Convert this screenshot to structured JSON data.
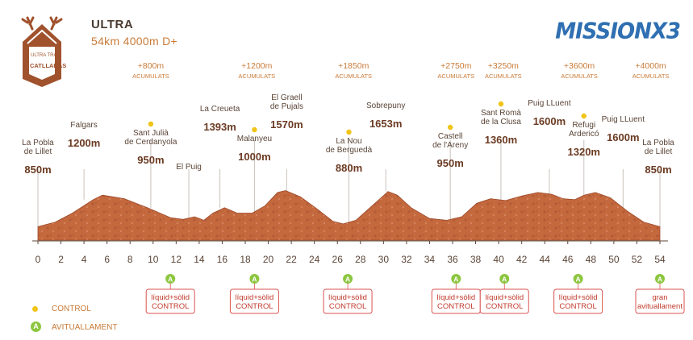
{
  "header": {
    "title": "ULTRA",
    "subtitle": "54km 4000m D+",
    "logo_text_1": "ULTRA TRAIL",
    "logo_text_2": "CATLLARÀS",
    "brand": "MISSIONX3"
  },
  "colors": {
    "terrain": "#c4683e",
    "terrain_dark": "#9c4a2b",
    "text_main": "#5a4436",
    "text_accent": "#c97a37",
    "control": "#f0c419",
    "station": "#8cc63f",
    "station_box": "#d9534f",
    "logo": "#a0522d",
    "brand": "#2f6fb2"
  },
  "chart_data": {
    "type": "area",
    "xlabel": "",
    "ylabel": "",
    "xlim": [
      0,
      54
    ],
    "ylim": [
      700,
      1700
    ],
    "x_ticks": [
      0,
      2,
      4,
      6,
      8,
      10,
      12,
      14,
      16,
      18,
      20,
      22,
      24,
      26,
      28,
      30,
      32,
      34,
      36,
      38,
      40,
      42,
      44,
      46,
      48,
      50,
      52,
      54
    ],
    "profile": [
      {
        "x": 0,
        "y": 850
      },
      {
        "x": 1.5,
        "y": 900
      },
      {
        "x": 3,
        "y": 1000
      },
      {
        "x": 4.8,
        "y": 1150
      },
      {
        "x": 5.6,
        "y": 1200
      },
      {
        "x": 7.5,
        "y": 1160
      },
      {
        "x": 9.5,
        "y": 1060
      },
      {
        "x": 11.5,
        "y": 950
      },
      {
        "x": 12.6,
        "y": 930
      },
      {
        "x": 13.6,
        "y": 960
      },
      {
        "x": 14.4,
        "y": 920
      },
      {
        "x": 15.2,
        "y": 1000
      },
      {
        "x": 16.2,
        "y": 1060
      },
      {
        "x": 17.3,
        "y": 1000
      },
      {
        "x": 18.6,
        "y": 1000
      },
      {
        "x": 19.7,
        "y": 1080
      },
      {
        "x": 20.8,
        "y": 1230
      },
      {
        "x": 21.5,
        "y": 1250
      },
      {
        "x": 22.8,
        "y": 1180
      },
      {
        "x": 24.2,
        "y": 1050
      },
      {
        "x": 25.6,
        "y": 910
      },
      {
        "x": 26.5,
        "y": 880
      },
      {
        "x": 27.6,
        "y": 920
      },
      {
        "x": 29,
        "y": 1080
      },
      {
        "x": 30.4,
        "y": 1240
      },
      {
        "x": 31.2,
        "y": 1200
      },
      {
        "x": 32.4,
        "y": 1060
      },
      {
        "x": 34,
        "y": 940
      },
      {
        "x": 35.5,
        "y": 920
      },
      {
        "x": 36.8,
        "y": 960
      },
      {
        "x": 38.1,
        "y": 1110
      },
      {
        "x": 39.3,
        "y": 1160
      },
      {
        "x": 40.6,
        "y": 1140
      },
      {
        "x": 42,
        "y": 1190
      },
      {
        "x": 43.4,
        "y": 1230
      },
      {
        "x": 44.6,
        "y": 1210
      },
      {
        "x": 45.6,
        "y": 1160
      },
      {
        "x": 46.6,
        "y": 1150
      },
      {
        "x": 47.4,
        "y": 1200
      },
      {
        "x": 48.4,
        "y": 1230
      },
      {
        "x": 49.7,
        "y": 1170
      },
      {
        "x": 51.2,
        "y": 1020
      },
      {
        "x": 52.6,
        "y": 900
      },
      {
        "x": 54,
        "y": 850
      }
    ],
    "accum": [
      {
        "x": 9.8,
        "value": "+800m",
        "label": "ACUMULATS"
      },
      {
        "x": 19.0,
        "value": "+1200m",
        "label": "ACUMULATS"
      },
      {
        "x": 27.4,
        "value": "+1850m",
        "label": "ACUMULATS"
      },
      {
        "x": 36.3,
        "value": "+2750m",
        "label": "ACUMULATS"
      },
      {
        "x": 40.4,
        "value": "+3250m",
        "label": "ACUMULATS"
      },
      {
        "x": 47.0,
        "value": "+3600m",
        "label": "ACUMULATS"
      },
      {
        "x": 53.2,
        "value": "+4000m",
        "label": "ACUMULATS"
      }
    ],
    "points": [
      {
        "x": 0,
        "name_lines": [
          "La Pobla",
          "de Lillet"
        ],
        "alt": "850m",
        "control": false
      },
      {
        "x": 4.0,
        "name_lines": [
          "Falgars"
        ],
        "alt": "1200m",
        "control": false
      },
      {
        "x": 9.8,
        "name_lines": [
          "Sant Julià",
          "de Cerdanyola"
        ],
        "alt": "950m",
        "control": true
      },
      {
        "x": 13.1,
        "name_lines": [
          "El Puig"
        ],
        "alt": "",
        "control": false
      },
      {
        "x": 15.8,
        "name_lines": [
          "La Creueta"
        ],
        "alt": "1393m",
        "control": false
      },
      {
        "x": 18.8,
        "name_lines": [
          "Malanyeu"
        ],
        "alt": "1000m",
        "control": true
      },
      {
        "x": 21.6,
        "name_lines": [
          "El Graell",
          "de Pujals"
        ],
        "alt": "1570m",
        "control": false
      },
      {
        "x": 27.0,
        "name_lines": [
          "La Nou",
          "de Berguedà"
        ],
        "alt": "880m",
        "control": true
      },
      {
        "x": 30.2,
        "name_lines": [
          "Sobrepuny"
        ],
        "alt": "1653m",
        "control": false
      },
      {
        "x": 35.8,
        "name_lines": [
          "Castell",
          "de l'Areny"
        ],
        "alt": "950m",
        "control": true
      },
      {
        "x": 40.2,
        "name_lines": [
          "Sant Romà",
          "de la Clusa"
        ],
        "alt": "1360m",
        "control": true
      },
      {
        "x": 44.4,
        "name_lines": [
          "Puig LLuent"
        ],
        "alt": "1600m",
        "control": false
      },
      {
        "x": 47.4,
        "name_lines": [
          "Refugi",
          "Ardericó"
        ],
        "alt": "1320m",
        "control": true
      },
      {
        "x": 50.8,
        "name_lines": [
          "Puig LLuent"
        ],
        "alt": "1600m",
        "control": false
      },
      {
        "x": 54,
        "name_lines": [
          "La Pobla",
          "de Lillet"
        ],
        "alt": "850m",
        "control": false
      }
    ],
    "stations": [
      {
        "x": 11.5,
        "lines": [
          "líquid+sòlid",
          "CONTROL"
        ]
      },
      {
        "x": 18.8,
        "lines": [
          "líquid+sòlid",
          "CONTROL"
        ]
      },
      {
        "x": 26.9,
        "lines": [
          "líquid+sòlid",
          "CONTROL"
        ]
      },
      {
        "x": 36.3,
        "lines": [
          "líquid+sòlid",
          "CONTROL"
        ]
      },
      {
        "x": 40.5,
        "lines": [
          "líquid+sòlid",
          "CONTROL"
        ]
      },
      {
        "x": 46.9,
        "lines": [
          "líquid+sòlid",
          "CONTROL"
        ]
      },
      {
        "x": 54.0,
        "lines": [
          "gran",
          "avituallament"
        ]
      }
    ]
  },
  "legend": {
    "control": "CONTROL",
    "station": "AVITUALLAMENT",
    "station_icon": "A"
  }
}
